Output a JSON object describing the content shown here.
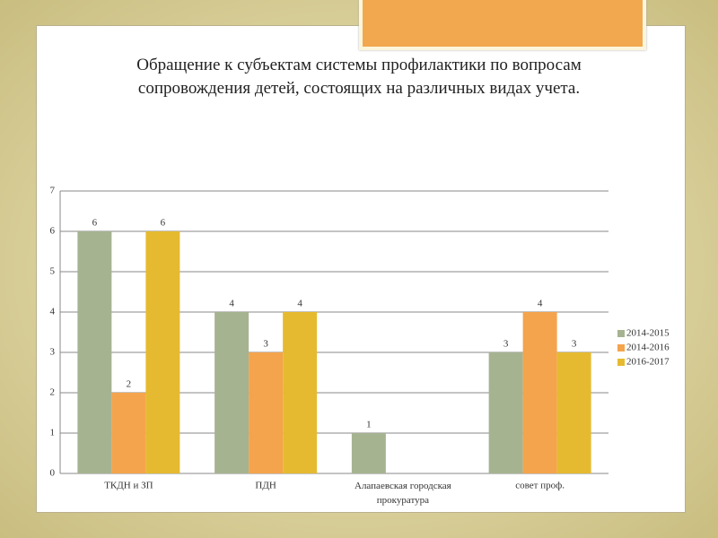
{
  "chart_data": {
    "type": "bar",
    "title": "Обращение к субъектам системы профилактики по вопросам сопровождения детей, состоящих на различных видах учета.",
    "categories": [
      "ТКДН и ЗП",
      "ПДН",
      "Алапаевская городская прокуратура",
      "совет проф."
    ],
    "series": [
      {
        "name": "2014-2015",
        "color": "#a6b391",
        "values": [
          6,
          4,
          1,
          3
        ]
      },
      {
        "name": "2014-2016",
        "color": "#f4a44c",
        "values": [
          2,
          3,
          null,
          4
        ]
      },
      {
        "name": "2016-2017",
        "color": "#e6ba30",
        "values": [
          6,
          4,
          null,
          3
        ]
      }
    ],
    "ylim": [
      0,
      7
    ],
    "yticks": [
      0,
      1,
      2,
      3,
      4,
      5,
      6,
      7
    ],
    "grid": true,
    "legend": "right"
  }
}
